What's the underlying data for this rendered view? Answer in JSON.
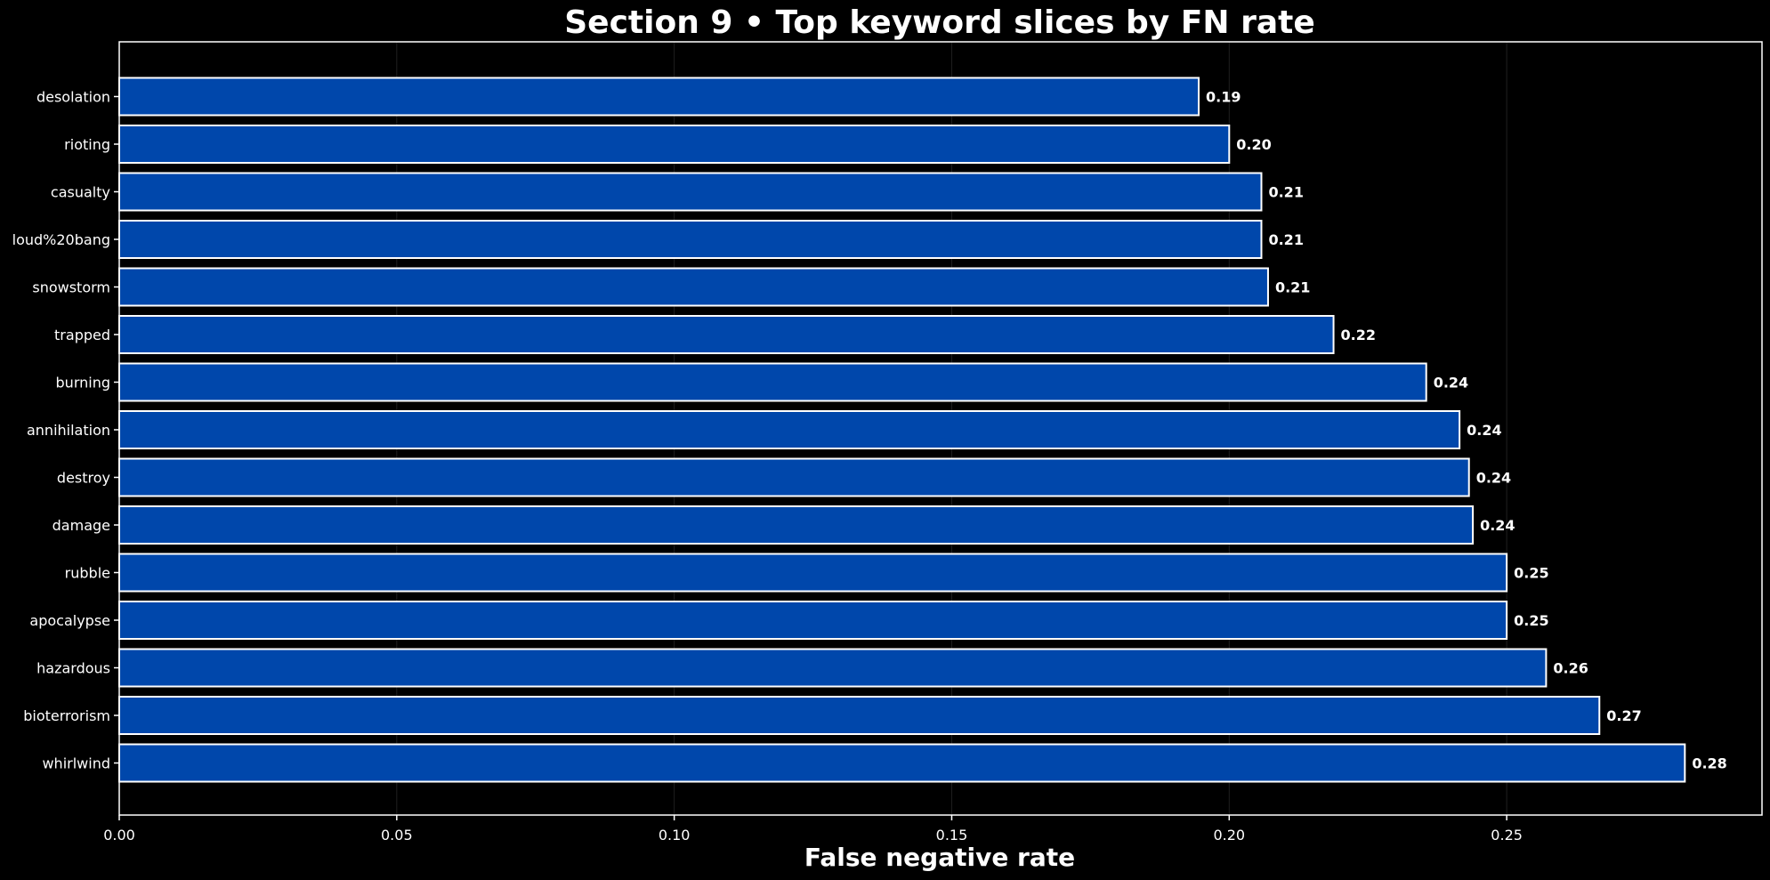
{
  "chart_data": {
    "type": "bar",
    "orientation": "horizontal",
    "title": "Section 9 • Top keyword slices by FN rate",
    "xlabel": "False negative rate",
    "ylabel": "",
    "xlim": [
      0,
      0.296
    ],
    "xticks": [
      0.0,
      0.05,
      0.1,
      0.15,
      0.2,
      0.25
    ],
    "xtick_labels": [
      "0.00",
      "0.05",
      "0.10",
      "0.15",
      "0.20",
      "0.25"
    ],
    "grid": true,
    "categories": [
      "desolation",
      "rioting",
      "casualty",
      "loud%20bang",
      "snowstorm",
      "trapped",
      "burning",
      "annihilation",
      "destroy",
      "damage",
      "rubble",
      "apocalypse",
      "hazardous",
      "bioterrorism",
      "whirlwind"
    ],
    "values": [
      0.1945,
      0.2,
      0.2058,
      0.2058,
      0.207,
      0.2188,
      0.2355,
      0.2415,
      0.2432,
      0.2439,
      0.25,
      0.25,
      0.2571,
      0.2667,
      0.2821
    ],
    "value_labels": [
      "0.19",
      "0.20",
      "0.21",
      "0.21",
      "0.21",
      "0.22",
      "0.24",
      "0.24",
      "0.24",
      "0.24",
      "0.25",
      "0.25",
      "0.26",
      "0.27",
      "0.28"
    ],
    "colors": {
      "background": "#000000",
      "bar_fill": "#0047AB",
      "bar_edge": "#FFFFFF",
      "text": "#FFFFFF",
      "axes": "#FFFFFF",
      "grid": "#333333"
    }
  }
}
